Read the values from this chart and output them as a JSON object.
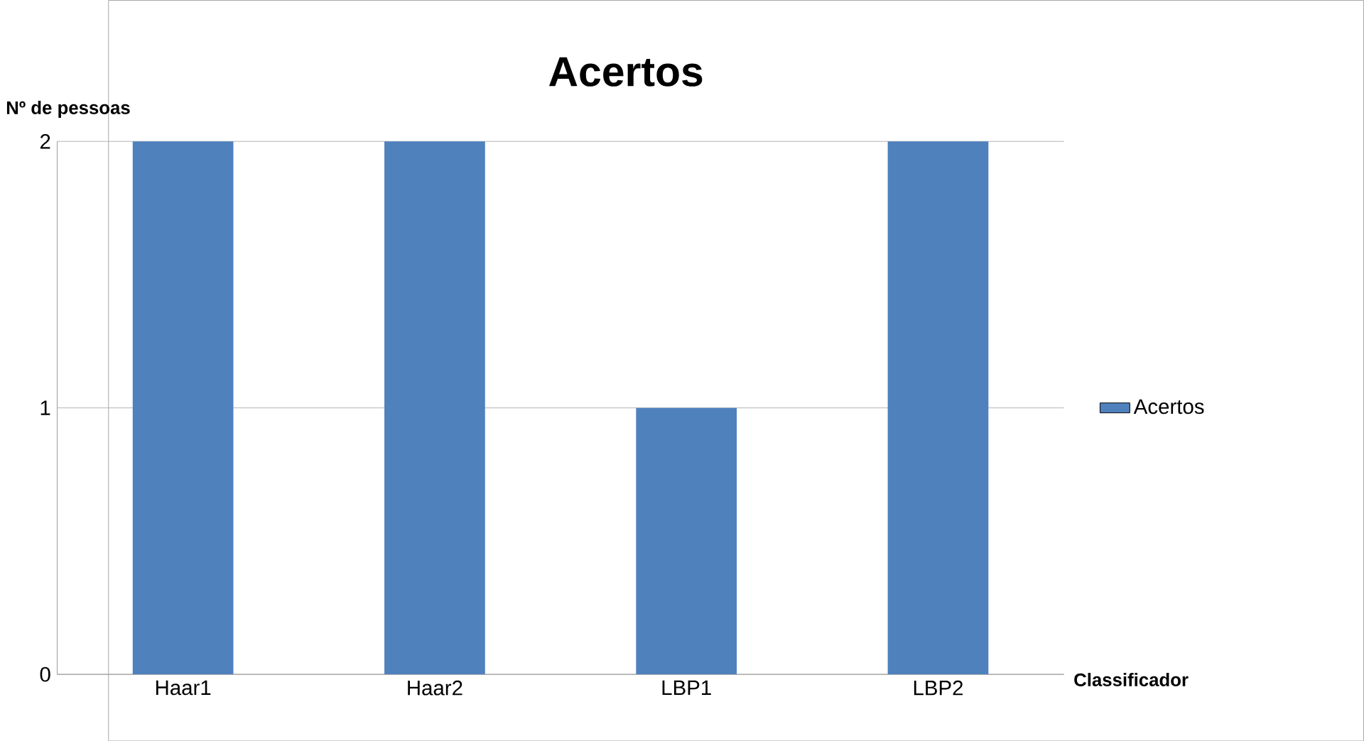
{
  "chart_data": {
    "type": "bar",
    "title": "Acertos",
    "xlabel": "Classificador",
    "ylabel": "Nº de pessoas",
    "categories": [
      "Haar1",
      "Haar2",
      "LBP1",
      "LBP2"
    ],
    "series": [
      {
        "name": "Acertos",
        "color": "#4f81bd",
        "values": [
          2,
          2,
          1,
          2
        ]
      }
    ],
    "ylim": [
      0,
      2
    ],
    "yticks": [
      0,
      1,
      2
    ],
    "grid": "y",
    "legend": "right"
  }
}
